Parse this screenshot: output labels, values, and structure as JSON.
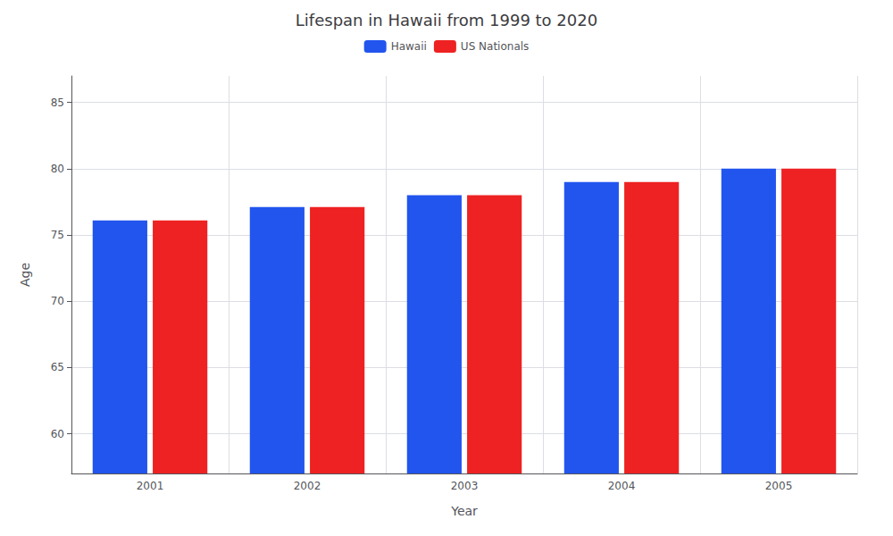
{
  "chart_data": {
    "type": "bar",
    "title": "Lifespan in Hawaii from 1999 to 2020",
    "xlabel": "Year",
    "ylabel": "Age",
    "categories": [
      "2001",
      "2002",
      "2003",
      "2004",
      "2005"
    ],
    "series": [
      {
        "name": "Hawaii",
        "color": "#2255ee",
        "values": [
          76.1,
          77.1,
          78.0,
          79.0,
          80.0
        ]
      },
      {
        "name": "US Nationals",
        "color": "#ee2222",
        "values": [
          76.1,
          77.1,
          78.0,
          79.0,
          80.0
        ]
      }
    ],
    "ylim": [
      57,
      87
    ],
    "yticks": [
      60,
      65,
      70,
      75,
      80,
      85
    ],
    "grid": true,
    "legend": "top"
  }
}
